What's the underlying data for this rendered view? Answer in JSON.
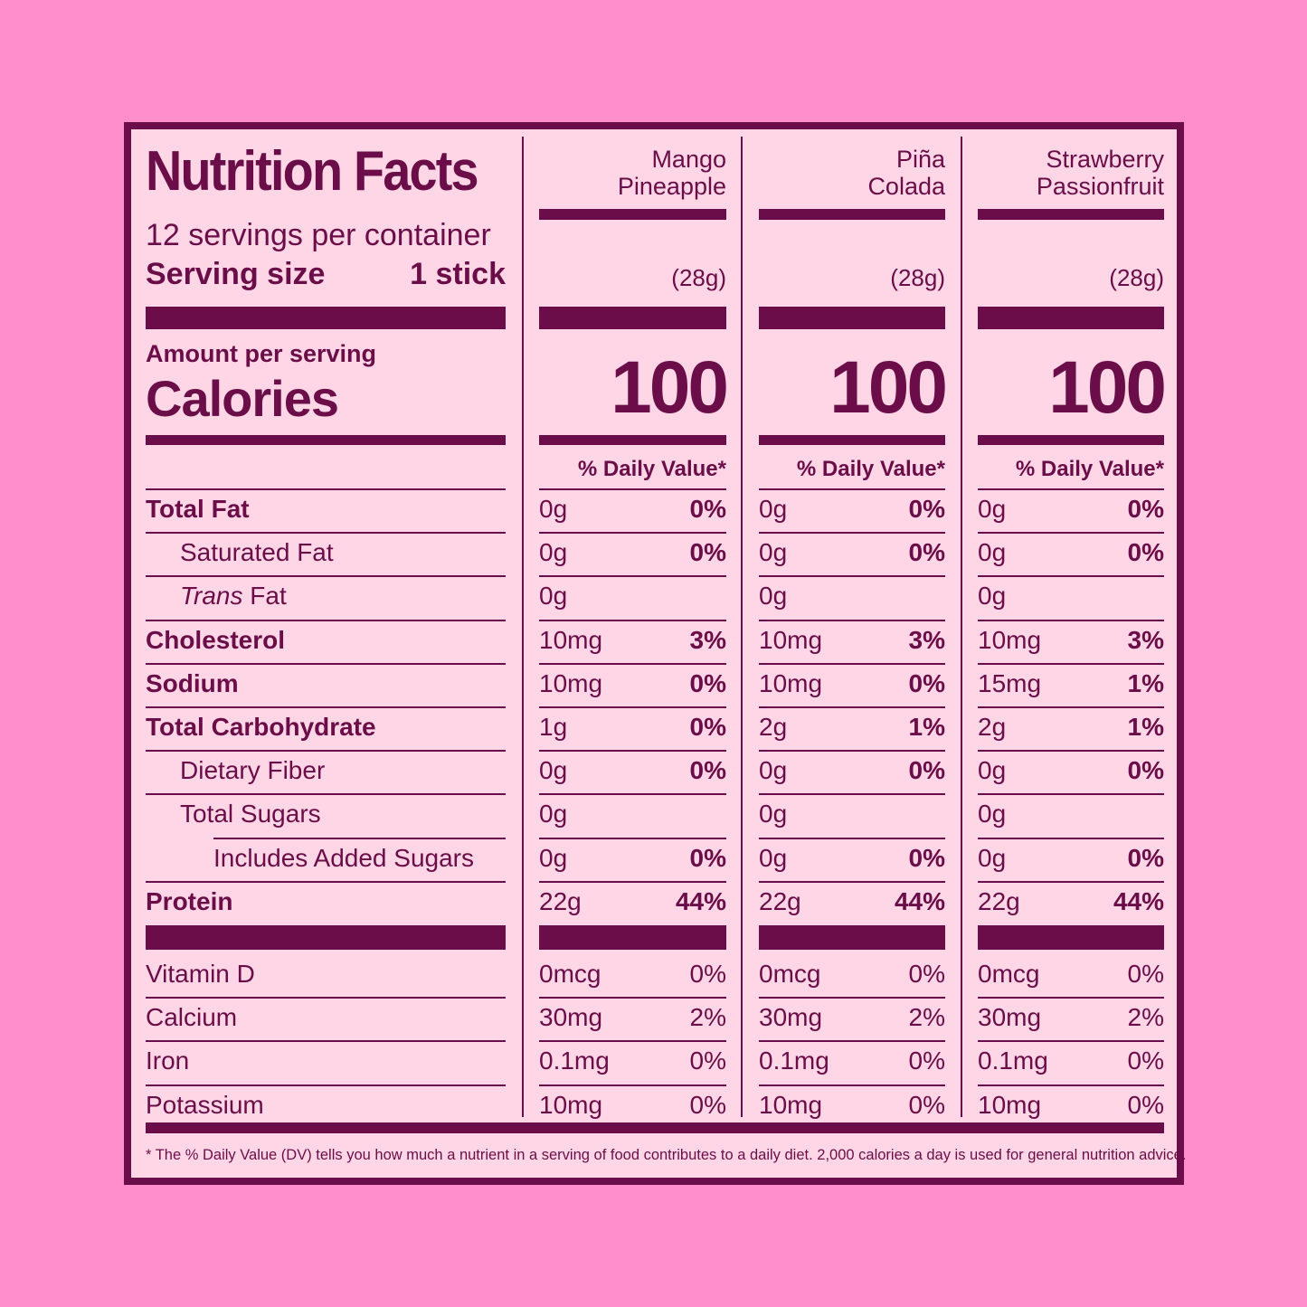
{
  "label": {
    "title": "Nutrition Facts",
    "servings_per_container": "12 servings per container",
    "serving_size_label": "Serving size",
    "serving_size_value": "1 stick",
    "amount_per_serving": "Amount per serving",
    "calories_label": "Calories",
    "dv_header": "% Daily Value*",
    "footnote": "* The % Daily Value (DV) tells you how much a nutrient in a serving of food contributes to a daily diet. 2,000 calories a day is used for general nutrition advice."
  },
  "flavors": [
    {
      "name_line1": "Mango",
      "name_line2": "Pineapple",
      "serving_weight": "(28g)",
      "calories": "100"
    },
    {
      "name_line1": "Piña",
      "name_line2": "Colada",
      "serving_weight": "(28g)",
      "calories": "100"
    },
    {
      "name_line1": "Strawberry",
      "name_line2": "Passionfruit",
      "serving_weight": "(28g)",
      "calories": "100"
    }
  ],
  "nutrients": [
    {
      "label": "Total Fat",
      "style": "bold",
      "values": [
        [
          "0g",
          "0%"
        ],
        [
          "0g",
          "0%"
        ],
        [
          "0g",
          "0%"
        ]
      ]
    },
    {
      "label": "Saturated Fat",
      "style": "indent1",
      "values": [
        [
          "0g",
          "0%"
        ],
        [
          "0g",
          "0%"
        ],
        [
          "0g",
          "0%"
        ]
      ]
    },
    {
      "label_italic": "Trans",
      "label": " Fat",
      "style": "indent1",
      "values": [
        [
          "0g",
          ""
        ],
        [
          "0g",
          ""
        ],
        [
          "0g",
          ""
        ]
      ]
    },
    {
      "label": "Cholesterol",
      "style": "bold",
      "values": [
        [
          "10mg",
          "3%"
        ],
        [
          "10mg",
          "3%"
        ],
        [
          "10mg",
          "3%"
        ]
      ]
    },
    {
      "label": "Sodium",
      "style": "bold",
      "values": [
        [
          "10mg",
          "0%"
        ],
        [
          "10mg",
          "0%"
        ],
        [
          "15mg",
          "1%"
        ]
      ]
    },
    {
      "label": "Total Carbohydrate",
      "style": "bold",
      "values": [
        [
          "1g",
          "0%"
        ],
        [
          "2g",
          "1%"
        ],
        [
          "2g",
          "1%"
        ]
      ]
    },
    {
      "label": "Dietary Fiber",
      "style": "indent1",
      "values": [
        [
          "0g",
          "0%"
        ],
        [
          "0g",
          "0%"
        ],
        [
          "0g",
          "0%"
        ]
      ]
    },
    {
      "label": "Total Sugars",
      "style": "indent1",
      "values": [
        [
          "0g",
          ""
        ],
        [
          "0g",
          ""
        ],
        [
          "0g",
          ""
        ]
      ]
    },
    {
      "label": "Includes Added Sugars",
      "style": "indent2",
      "values": [
        [
          "0g",
          "0%"
        ],
        [
          "0g",
          "0%"
        ],
        [
          "0g",
          "0%"
        ]
      ]
    },
    {
      "label": "Protein",
      "style": "bold",
      "values": [
        [
          "22g",
          "44%"
        ],
        [
          "22g",
          "44%"
        ],
        [
          "22g",
          "44%"
        ]
      ]
    }
  ],
  "vitamins": [
    {
      "label": "Vitamin D",
      "values": [
        [
          "0mcg",
          "0%"
        ],
        [
          "0mcg",
          "0%"
        ],
        [
          "0mcg",
          "0%"
        ]
      ]
    },
    {
      "label": "Calcium",
      "values": [
        [
          "30mg",
          "2%"
        ],
        [
          "30mg",
          "2%"
        ],
        [
          "30mg",
          "2%"
        ]
      ]
    },
    {
      "label": "Iron",
      "values": [
        [
          "0.1mg",
          "0%"
        ],
        [
          "0.1mg",
          "0%"
        ],
        [
          "0.1mg",
          "0%"
        ]
      ]
    },
    {
      "label": "Potassium",
      "values": [
        [
          "10mg",
          "0%"
        ],
        [
          "10mg",
          "0%"
        ],
        [
          "10mg",
          "0%"
        ]
      ]
    }
  ],
  "colors": {
    "background": "#ff8ecd",
    "panel": "#ffd6e6",
    "ink": "#6b0d48"
  }
}
